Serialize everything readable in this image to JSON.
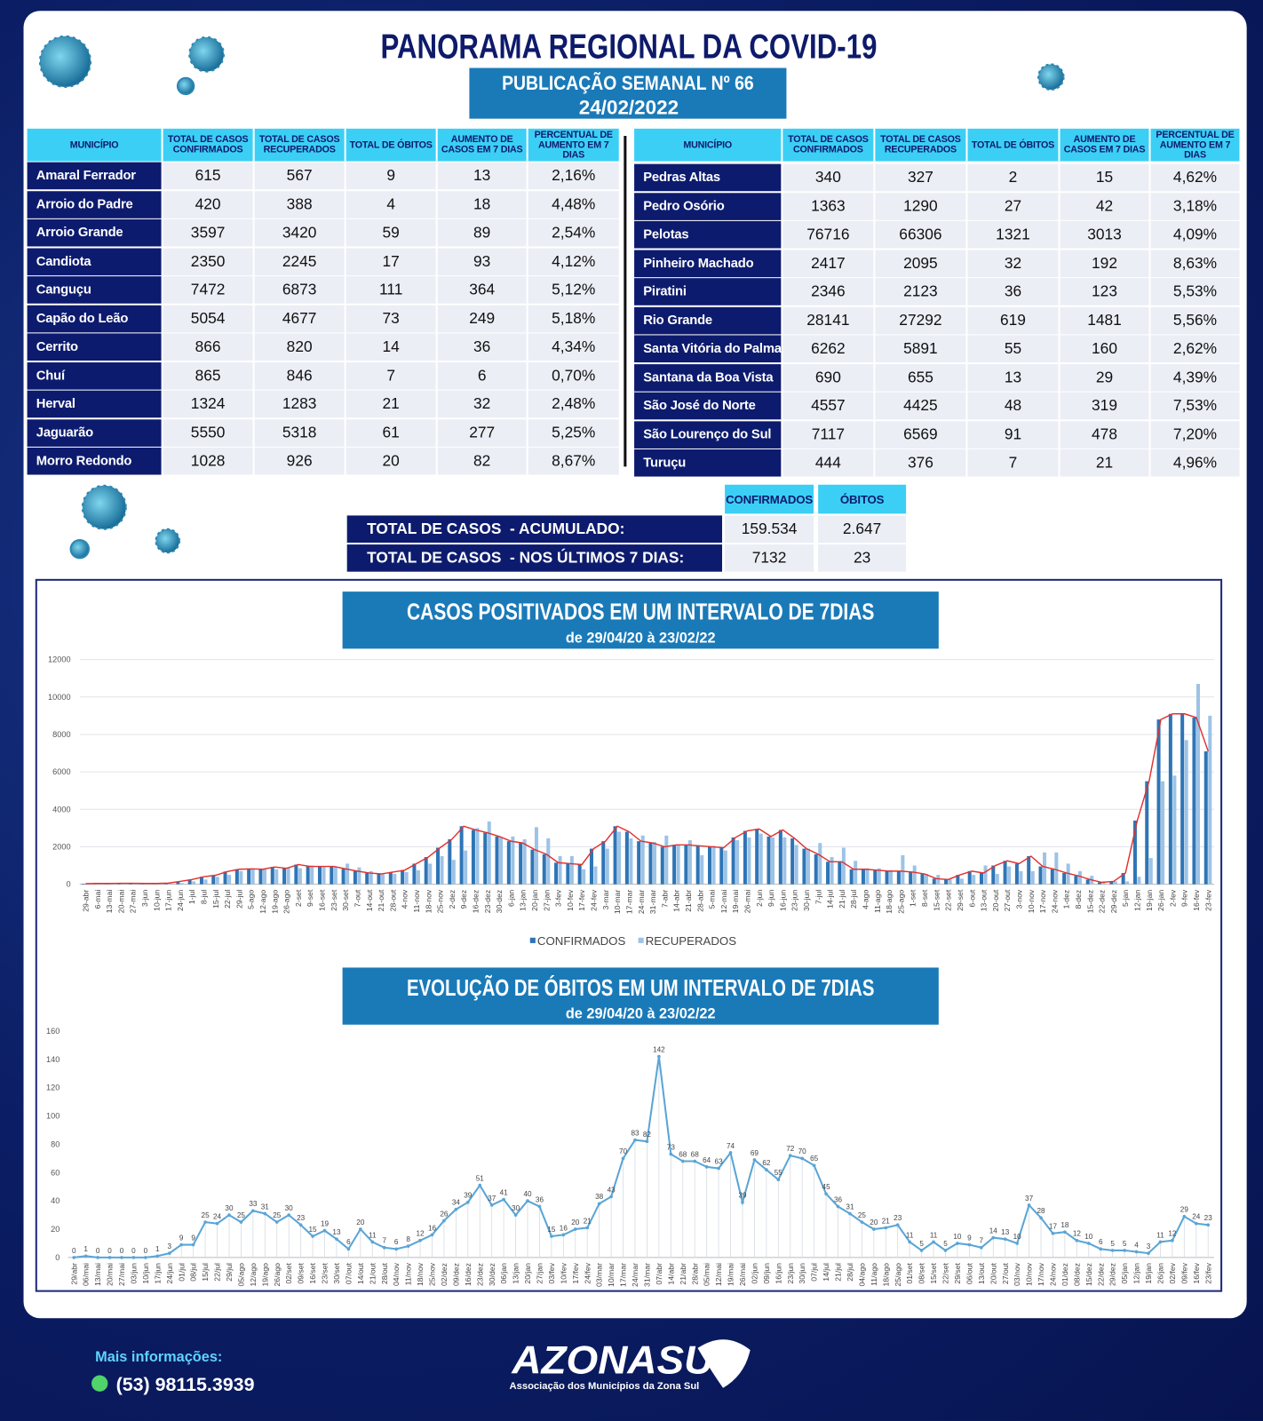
{
  "header": {
    "title": "PANORAMA REGIONAL DA COVID-19",
    "subtitle": "PUBLICAÇÃO SEMANAL Nº 66",
    "date": "24/02/2022"
  },
  "tables": [
    {
      "columns": [
        "MUNICÍPIO",
        "TOTAL DE CASOS CONFIRMADOS",
        "TOTAL DE CASOS RECUPERADOS",
        "TOTAL DE ÓBITOS",
        "AUMENTO DE CASOS EM 7 DIAS",
        "PERCENTUAL DE AUMENTO EM 7 DIAS"
      ],
      "rows": [
        [
          "Amaral Ferrador",
          615,
          567,
          9,
          13,
          "2,16%"
        ],
        [
          "Arroio do Padre",
          420,
          388,
          4,
          18,
          "4,48%"
        ],
        [
          "Arroio Grande",
          3597,
          3420,
          59,
          89,
          "2,54%"
        ],
        [
          "Candiota",
          2350,
          2245,
          17,
          93,
          "4,12%"
        ],
        [
          "Canguçu",
          7472,
          6873,
          111,
          364,
          "5,12%"
        ],
        [
          "Capão do Leão",
          5054,
          4677,
          73,
          249,
          "5,18%"
        ],
        [
          "Cerrito",
          866,
          820,
          14,
          36,
          "4,34%"
        ],
        [
          "Chuí",
          865,
          846,
          7,
          6,
          "0,70%"
        ],
        [
          "Herval",
          1324,
          1283,
          21,
          32,
          "2,48%"
        ],
        [
          "Jaguarão",
          5550,
          5318,
          61,
          277,
          "5,25%"
        ],
        [
          "Morro Redondo",
          1028,
          926,
          20,
          82,
          "8,67%"
        ]
      ]
    },
    {
      "columns": [
        "MUNICÍPIO",
        "TOTAL DE CASOS CONFIRMADOS",
        "TOTAL DE CASOS RECUPERADOS",
        "TOTAL DE ÓBITOS",
        "AUMENTO DE CASOS EM 7 DIAS",
        "PERCENTUAL DE AUMENTO EM 7 DIAS"
      ],
      "rows": [
        [
          "Pedras Altas",
          340,
          327,
          2,
          15,
          "4,62%"
        ],
        [
          "Pedro Osório",
          1363,
          1290,
          27,
          42,
          "3,18%"
        ],
        [
          "Pelotas",
          76716,
          66306,
          1321,
          3013,
          "4,09%"
        ],
        [
          "Pinheiro Machado",
          2417,
          2095,
          32,
          192,
          "8,63%"
        ],
        [
          "Piratini",
          2346,
          2123,
          36,
          123,
          "5,53%"
        ],
        [
          "Rio Grande",
          28141,
          27292,
          619,
          1481,
          "5,56%"
        ],
        [
          "Santa Vitória do Palmar",
          6262,
          5891,
          55,
          160,
          "2,62%"
        ],
        [
          "Santana da Boa Vista",
          690,
          655,
          13,
          29,
          "4,39%"
        ],
        [
          "São José do Norte",
          4557,
          4425,
          48,
          319,
          "7,53%"
        ],
        [
          "São Lourenço do Sul",
          7117,
          6569,
          91,
          478,
          "7,20%"
        ],
        [
          "Turuçu",
          444,
          376,
          7,
          21,
          "4,96%"
        ]
      ]
    }
  ],
  "totals": {
    "columns": [
      "CONFIRMADOS",
      "ÓBITOS"
    ],
    "rows": [
      {
        "label": "TOTAL DE CASOS  - ACUMULADO:",
        "values": [
          "159.534",
          "2.647"
        ]
      },
      {
        "label": "TOTAL DE CASOS  - NOS ÚLTIMOS 7 DIAS:",
        "values": [
          "7132",
          "23"
        ]
      }
    ]
  },
  "chart_data": [
    {
      "type": "bar",
      "title": "CASOS POSITIVADOS EM UM INTERVALO DE 7DIAS",
      "subtitle": "de 29/04/20 à 23/02/22",
      "categories": [
        "29-abr",
        "6-mai",
        "13-mai",
        "20-mai",
        "27-mai",
        "3-jun",
        "10-jun",
        "17-jun",
        "24-jun",
        "1-jul",
        "8-jul",
        "15-jul",
        "22-jul",
        "29-jul",
        "5-ago",
        "12-ago",
        "19-ago",
        "26-ago",
        "2-set",
        "9-set",
        "16-set",
        "23-set",
        "30-set",
        "7-out",
        "14-out",
        "21-out",
        "28-out",
        "4-nov",
        "11-nov",
        "18-nov",
        "25-nov",
        "2-dez",
        "9-dez",
        "16-dez",
        "23-dez",
        "30-dez",
        "6-jan",
        "13-jan",
        "20-jan",
        "27-jan",
        "3-fev",
        "10-fev",
        "17-fev",
        "24-fev",
        "3-mar",
        "10-mar",
        "17-mar",
        "24-mar",
        "31-mar",
        "7-abr",
        "14-abr",
        "21-abr",
        "28-abr",
        "5-mai",
        "12-mai",
        "19-mai",
        "26-mai",
        "2-jun",
        "9-jun",
        "16-jun",
        "23-jun",
        "30-jun",
        "7-jul",
        "14-jul",
        "21-jul",
        "28-jul",
        "4-ago",
        "11-ago",
        "18-ago",
        "25-ago",
        "1-set",
        "8-set",
        "15-set",
        "22-set",
        "29-set",
        "6-out",
        "13-out",
        "20-out",
        "27-out",
        "3-nov",
        "10-nov",
        "17-nov",
        "24-nov",
        "1-dez",
        "8-dez",
        "15-dez",
        "22-dez",
        "29-dez",
        "5-jan",
        "12-jan",
        "19-jan",
        "26-jan",
        "2-fev",
        "9-fev",
        "16-fev",
        "23-fev"
      ],
      "series": [
        {
          "name": "CONFIRMADOS",
          "color": "#2e75b6",
          "values": [
            30,
            40,
            40,
            50,
            50,
            40,
            40,
            60,
            150,
            250,
            400,
            480,
            680,
            800,
            820,
            800,
            920,
            850,
            1050,
            950,
            950,
            950,
            820,
            700,
            600,
            550,
            650,
            750,
            1100,
            1450,
            1950,
            2400,
            3100,
            2900,
            2750,
            2550,
            2300,
            2200,
            1850,
            1600,
            1150,
            1100,
            1050,
            1900,
            2300,
            3100,
            2800,
            2300,
            2200,
            2000,
            2100,
            2100,
            2050,
            2000,
            1950,
            2500,
            2850,
            2950,
            2550,
            2900,
            2450,
            1900,
            1600,
            1200,
            1200,
            800,
            800,
            750,
            700,
            700,
            650,
            550,
            300,
            250,
            500,
            700,
            600,
            1000,
            1250,
            1100,
            1500,
            950,
            800,
            600,
            450,
            250,
            100,
            150,
            600,
            3400,
            5500,
            8800,
            9100,
            9100,
            8900,
            7100
          ]
        },
        {
          "name": "RECUPERADOS",
          "color": "#9dc3e6",
          "values": [
            0,
            10,
            20,
            30,
            40,
            40,
            40,
            40,
            60,
            150,
            250,
            400,
            500,
            700,
            800,
            800,
            800,
            900,
            850,
            1000,
            950,
            950,
            1100,
            900,
            700,
            550,
            550,
            650,
            750,
            1100,
            1500,
            1300,
            1800,
            3000,
            3350,
            2500,
            2550,
            2400,
            3050,
            2450,
            1500,
            1500,
            800,
            950,
            1900,
            2800,
            2450,
            2600,
            2250,
            2600,
            2100,
            2350,
            1550,
            2050,
            1800,
            2350,
            2500,
            2700,
            2500,
            2500,
            2100,
            1900,
            2200,
            1450,
            1950,
            1250,
            850,
            850,
            750,
            1550,
            1000,
            550,
            500,
            250,
            300,
            500,
            1000,
            550,
            950,
            700,
            700,
            1700,
            1700,
            1100,
            700,
            450,
            150,
            150,
            150,
            400,
            1400,
            5500,
            5800,
            7700,
            10700,
            9000
          ]
        }
      ],
      "line_color": "#e0312f",
      "ylim": [
        0,
        12000
      ],
      "yticks": [
        0,
        2000,
        4000,
        6000,
        8000,
        10000,
        12000
      ],
      "grid": true,
      "legend": "bottom"
    },
    {
      "type": "line",
      "title": "EVOLUÇÃO DE ÓBITOS EM UM INTERVALO DE 7DIAS",
      "subtitle": "de 29/04/20 à 23/02/22",
      "categories": [
        "29/abr",
        "06/mai",
        "13/mai",
        "20/mai",
        "27/mai",
        "03/jun",
        "10/jun",
        "17/jun",
        "24/jun",
        "01/jul",
        "08/jul",
        "15/jul",
        "22/jul",
        "29/jul",
        "05/ago",
        "12/ago",
        "19/ago",
        "26/ago",
        "02/set",
        "09/set",
        "16/set",
        "23/set",
        "30/set",
        "07/out",
        "14/out",
        "21/out",
        "28/out",
        "04/nov",
        "11/nov",
        "18/nov",
        "25/nov",
        "02/dez",
        "09/dez",
        "16/dez",
        "23/dez",
        "30/dez",
        "06/jan",
        "13/jan",
        "20/jan",
        "27/jan",
        "03/fev",
        "10/fev",
        "17/fev",
        "24/fev",
        "03/mar",
        "10/mar",
        "17/mar",
        "24/mar",
        "31/mar",
        "07/abr",
        "14/abr",
        "21/abr",
        "28/abr",
        "05/mai",
        "12/mai",
        "19/mai",
        "26/mai",
        "02/jun",
        "09/jun",
        "16/jun",
        "23/jun",
        "30/jun",
        "07/jul",
        "14/jul",
        "21/jul",
        "28/jul",
        "04/ago",
        "11/ago",
        "18/ago",
        "25/ago",
        "01/set",
        "08/set",
        "15/set",
        "22/set",
        "29/set",
        "06/out",
        "13/out",
        "20/out",
        "27/out",
        "03/nov",
        "10/nov",
        "17/nov",
        "24/nov",
        "01/dez",
        "08/dez",
        "15/dez",
        "22/dez",
        "29/dez",
        "05/jan",
        "12/jan",
        "19/jan",
        "26/jan",
        "02/fev",
        "09/fev",
        "16/fev",
        "23/fev"
      ],
      "values": [
        0,
        1,
        0,
        0,
        0,
        0,
        0,
        1,
        3,
        9,
        9,
        25,
        24,
        30,
        25,
        33,
        31,
        25,
        30,
        23,
        15,
        19,
        13,
        6,
        20,
        11,
        7,
        6,
        8,
        12,
        16,
        26,
        34,
        39,
        51,
        37,
        41,
        30,
        40,
        36,
        15,
        16,
        20,
        21,
        38,
        43,
        70,
        83,
        82,
        142,
        73,
        68,
        68,
        64,
        63,
        74,
        39,
        69,
        62,
        55,
        72,
        70,
        65,
        45,
        36,
        31,
        25,
        20,
        21,
        23,
        11,
        5,
        11,
        5,
        10,
        9,
        7,
        14,
        13,
        10,
        37,
        28,
        17,
        18,
        12,
        10,
        6,
        5,
        5,
        4,
        3,
        11,
        12,
        29,
        24,
        23
      ],
      "color": "#5aa5d6",
      "drop_lines": true,
      "ylim": [
        0,
        160
      ],
      "yticks": [
        0,
        20,
        40,
        60,
        80,
        100,
        120,
        140,
        160
      ],
      "grid": false
    }
  ],
  "footer": {
    "info": "Mais informações:",
    "phone": "(53) 98115.3939",
    "logo": "AZONASUL",
    "logo_caption": "Associação dos Municípios da Zona Sul"
  }
}
